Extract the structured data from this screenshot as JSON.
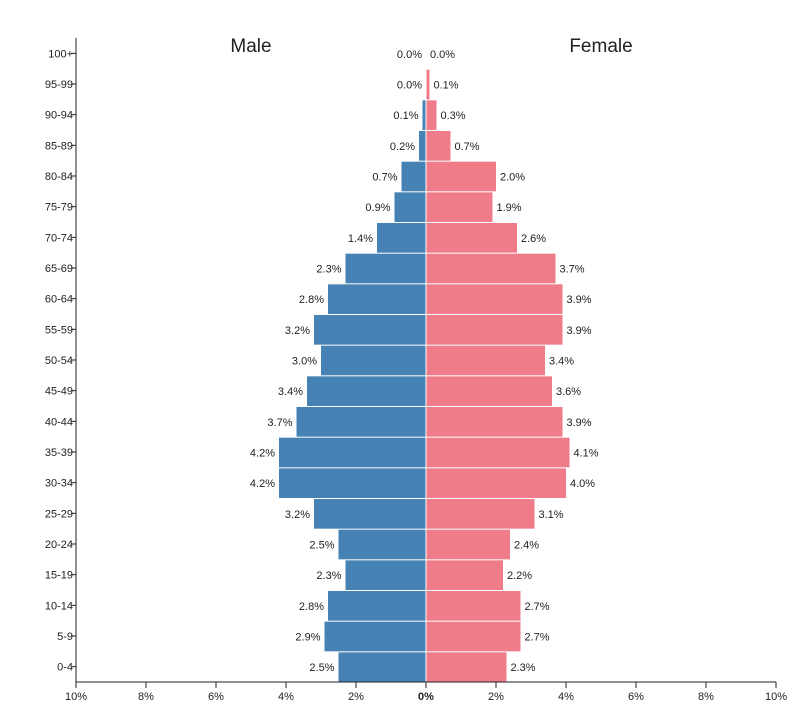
{
  "chart_data": {
    "type": "bar",
    "orientation": "horizontal-diverging",
    "title": "",
    "categories": [
      "0-4",
      "5-9",
      "10-14",
      "15-19",
      "20-24",
      "25-29",
      "30-34",
      "35-39",
      "40-44",
      "45-49",
      "50-54",
      "55-59",
      "60-64",
      "65-69",
      "70-74",
      "75-79",
      "80-84",
      "85-89",
      "90-94",
      "95-99",
      "100+"
    ],
    "series": [
      {
        "name": "Male",
        "color": "#4682b4",
        "values": [
          2.5,
          2.9,
          2.8,
          2.3,
          2.5,
          3.2,
          4.2,
          4.2,
          3.7,
          3.4,
          3.0,
          3.2,
          2.8,
          2.3,
          1.4,
          0.9,
          0.7,
          0.2,
          0.1,
          0.0,
          0.0
        ],
        "labels": [
          "2.5%",
          "2.9%",
          "2.8%",
          "2.3%",
          "2.5%",
          "3.2%",
          "4.2%",
          "4.2%",
          "3.7%",
          "3.4%",
          "3.0%",
          "3.2%",
          "2.8%",
          "2.3%",
          "1.4%",
          "0.9%",
          "0.7%",
          "0.2%",
          "0.1%",
          "0.0%",
          "0.0%"
        ]
      },
      {
        "name": "Female",
        "color": "#f07c8a",
        "values": [
          2.3,
          2.7,
          2.7,
          2.2,
          2.4,
          3.1,
          4.0,
          4.1,
          3.9,
          3.6,
          3.4,
          3.9,
          3.9,
          3.7,
          2.6,
          1.9,
          2.0,
          0.7,
          0.3,
          0.1,
          0.0
        ],
        "labels": [
          "2.3%",
          "2.7%",
          "2.7%",
          "2.2%",
          "2.4%",
          "3.1%",
          "4.0%",
          "4.1%",
          "3.9%",
          "3.6%",
          "3.4%",
          "3.9%",
          "3.9%",
          "3.7%",
          "2.6%",
          "1.9%",
          "2.0%",
          "0.7%",
          "0.3%",
          "0.1%",
          "0.0%"
        ]
      }
    ],
    "xlim": [
      -10,
      10
    ],
    "x_ticks": [
      {
        "value": -10,
        "label": "10%"
      },
      {
        "value": -8,
        "label": "8%"
      },
      {
        "value": -6,
        "label": "6%"
      },
      {
        "value": -4,
        "label": "4%"
      },
      {
        "value": -2,
        "label": "2%"
      },
      {
        "value": 0,
        "label": "0%"
      },
      {
        "value": 2,
        "label": "2%"
      },
      {
        "value": 4,
        "label": "4%"
      },
      {
        "value": 6,
        "label": "6%"
      },
      {
        "value": 8,
        "label": "8%"
      },
      {
        "value": 10,
        "label": "10%"
      }
    ],
    "grid": false,
    "legend": "none"
  }
}
